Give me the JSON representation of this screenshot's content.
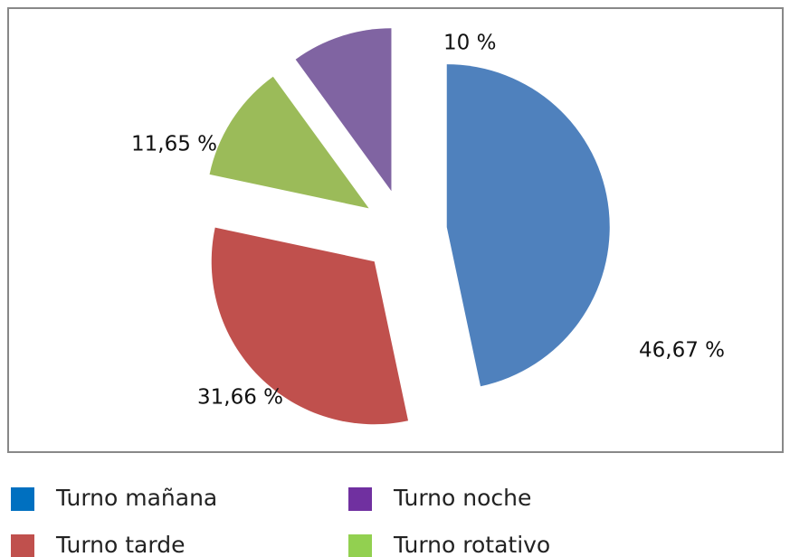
{
  "chart_data": {
    "type": "pie",
    "categories": [
      "Turno mañana",
      "Turno tarde",
      "Turno rotativo",
      "Turno noche"
    ],
    "values": [
      46.67,
      31.66,
      11.65,
      10
    ],
    "value_labels": [
      "46,67 %",
      "31,66 %",
      "11,65 %",
      "10 %"
    ],
    "colors": [
      "#4f81bd",
      "#c0504d",
      "#9bbb59",
      "#8064a2"
    ],
    "legend_colors": [
      "#0070c0",
      "#c0504d",
      "#92d050",
      "#7030a0"
    ]
  }
}
